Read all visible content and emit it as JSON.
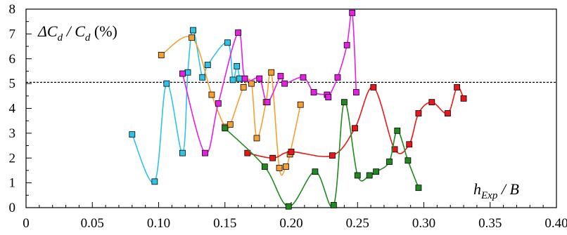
{
  "chart_data": {
    "type": "line",
    "ylabel_parts": [
      "ΔC",
      "d",
      " / C",
      "d",
      " (%)"
    ],
    "xlabel_parts": [
      "h",
      "Exp",
      " / B"
    ],
    "xlim": [
      0,
      0.4
    ],
    "ylim": [
      0,
      8
    ],
    "x_ticks": [
      "0",
      "0.05",
      "0.10",
      "0.15",
      "0.20",
      "0.25",
      "0.30",
      "0.35",
      "0.40"
    ],
    "x_tick_values": [
      0,
      0.05,
      0.1,
      0.15,
      0.2,
      0.25,
      0.3,
      0.35,
      0.4
    ],
    "y_ticks": [
      "0",
      "1",
      "2",
      "3",
      "4",
      "5",
      "6",
      "7",
      "8"
    ],
    "y_tick_values": [
      0,
      1,
      2,
      3,
      4,
      5,
      6,
      7,
      8
    ],
    "reference_line": {
      "y": 5.05,
      "style": "dashed"
    },
    "series": [
      {
        "color": "#2ec4e8",
        "points": [
          [
            0.08,
            2.95
          ],
          [
            0.097,
            1.05
          ],
          [
            0.106,
            5.0
          ],
          [
            0.118,
            2.2
          ],
          [
            0.122,
            5.45
          ],
          [
            0.126,
            7.15
          ],
          [
            0.133,
            5.25
          ],
          [
            0.137,
            5.75
          ],
          [
            0.152,
            6.65
          ],
          [
            0.156,
            5.15
          ],
          [
            0.159,
            5.7
          ],
          [
            0.161,
            5.2
          ]
        ]
      },
      {
        "color": "#f5a031",
        "points": [
          [
            0.102,
            6.15
          ],
          [
            0.125,
            6.85
          ],
          [
            0.14,
            4.55
          ],
          [
            0.15,
            3.25
          ],
          [
            0.154,
            3.35
          ],
          [
            0.164,
            4.85
          ],
          [
            0.17,
            5.0
          ],
          [
            0.174,
            2.8
          ],
          [
            0.181,
            4.25
          ],
          [
            0.185,
            5.45
          ],
          [
            0.191,
            1.6
          ],
          [
            0.196,
            1.65
          ],
          [
            0.199,
            2.15
          ],
          [
            0.207,
            4.15
          ]
        ]
      },
      {
        "color": "#e61ee6",
        "points": [
          [
            0.118,
            5.4
          ],
          [
            0.135,
            2.2
          ],
          [
            0.145,
            4.2
          ],
          [
            0.16,
            7.05
          ],
          [
            0.165,
            5.2
          ],
          [
            0.176,
            5.2
          ],
          [
            0.182,
            4.25
          ],
          [
            0.192,
            5.3
          ],
          [
            0.195,
            5.0
          ],
          [
            0.209,
            5.25
          ],
          [
            0.217,
            4.65
          ],
          [
            0.227,
            4.55
          ],
          [
            0.228,
            4.45
          ],
          [
            0.235,
            5.25
          ],
          [
            0.242,
            6.55
          ],
          [
            0.246,
            7.85
          ],
          [
            0.249,
            4.65
          ]
        ]
      },
      {
        "color": "#e81818",
        "points": [
          [
            0.167,
            2.2
          ],
          [
            0.186,
            2.0
          ],
          [
            0.2,
            2.25
          ],
          [
            0.231,
            2.1
          ],
          [
            0.248,
            3.2
          ],
          [
            0.262,
            4.85
          ],
          [
            0.278,
            2.35
          ],
          [
            0.289,
            2.55
          ],
          [
            0.296,
            3.8
          ],
          [
            0.306,
            4.25
          ],
          [
            0.318,
            3.8
          ],
          [
            0.325,
            4.85
          ],
          [
            0.33,
            4.4
          ]
        ]
      },
      {
        "color": "#1f8a1f",
        "points": [
          [
            0.15,
            3.2
          ],
          [
            0.18,
            1.65
          ],
          [
            0.198,
            0.05
          ],
          [
            0.218,
            1.45
          ],
          [
            0.232,
            0.1
          ],
          [
            0.24,
            4.25
          ],
          [
            0.25,
            1.3
          ],
          [
            0.259,
            1.3
          ],
          [
            0.264,
            1.45
          ],
          [
            0.274,
            1.85
          ],
          [
            0.28,
            3.1
          ],
          [
            0.288,
            1.9
          ],
          [
            0.296,
            0.8
          ]
        ]
      }
    ]
  }
}
